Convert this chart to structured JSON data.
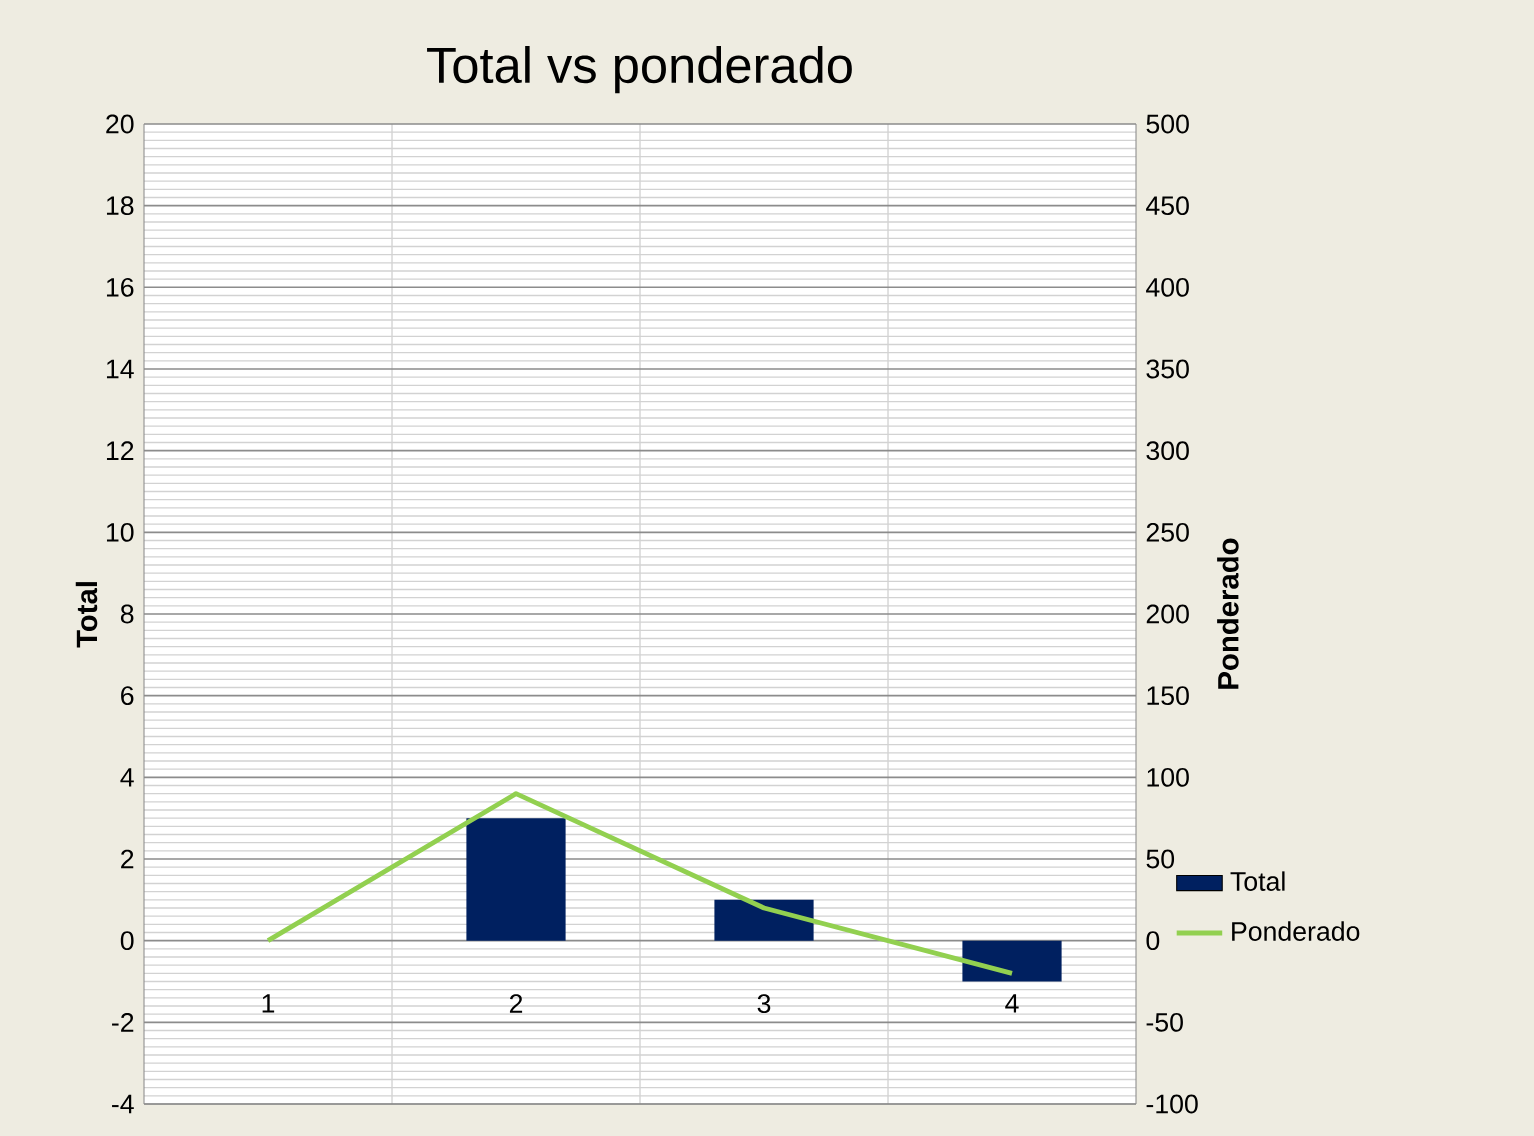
{
  "chart_data": {
    "type": "bar",
    "title": "Total vs ponderado",
    "ylabel": "Total",
    "y2label": "Ponderado",
    "categories": [
      "1",
      "2",
      "3",
      "4"
    ],
    "series": [
      {
        "name": "Total",
        "color": "#002060",
        "values": [
          0,
          3,
          1,
          -1
        ]
      },
      {
        "name": "Ponderado",
        "type": "line",
        "axis": "y2",
        "color": "#92d050",
        "values": [
          0,
          90,
          20,
          -20
        ]
      }
    ],
    "ylim": [
      -4,
      20
    ],
    "yticks": [
      -4,
      -2,
      0,
      2,
      4,
      6,
      8,
      10,
      12,
      14,
      16,
      18,
      20
    ],
    "y2lim": [
      -100,
      500
    ],
    "y2ticks": [
      -100,
      -50,
      0,
      50,
      100,
      150,
      200,
      250,
      300,
      350,
      400,
      450,
      500
    ],
    "grid": true,
    "legend": "right",
    "marker": "none",
    "line_style": "solid"
  }
}
